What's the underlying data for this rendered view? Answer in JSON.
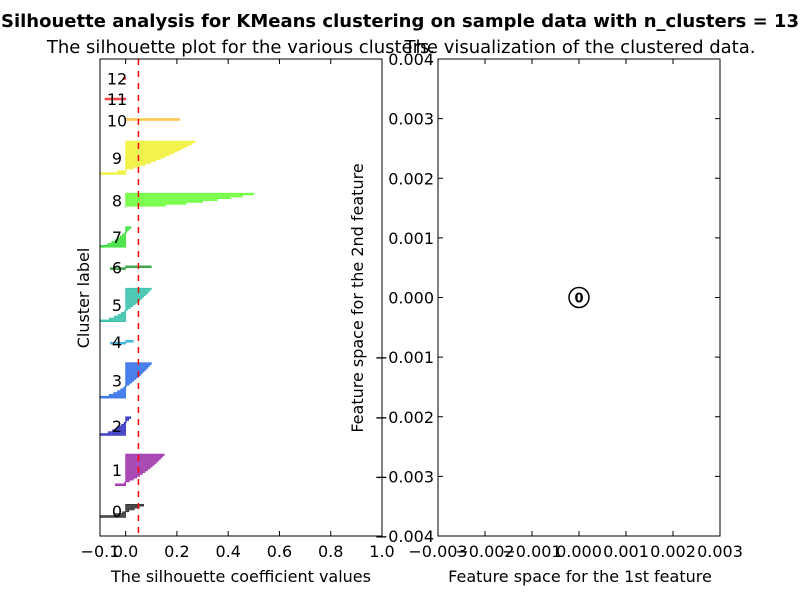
{
  "suptitle": "Silhouette analysis for KMeans clustering on sample data with n_clusters = 13",
  "chart_data": [
    {
      "type": "area",
      "title": "The silhouette plot for the various clusters.",
      "xlabel": "The silhouette coefficient values",
      "ylabel": "Cluster label",
      "xlim": [
        -0.1,
        1.0
      ],
      "xticks": [
        "−0.1",
        "0.0",
        "0.2",
        "0.4",
        "0.6",
        "0.8",
        "1.0"
      ],
      "xtick_values": [
        -0.1,
        0.0,
        0.2,
        0.4,
        0.6,
        0.8,
        1.0
      ],
      "average_silhouette": 0.05,
      "average_line_color": "#ff0000",
      "clusters": [
        {
          "label": "0",
          "size": 7,
          "min": -0.1,
          "max": 0.07,
          "color": "#2b2b2b"
        },
        {
          "label": "1",
          "size": 17,
          "min": -0.04,
          "max": 0.15,
          "color": "#9b2aa8"
        },
        {
          "label": "2",
          "size": 10,
          "min": -0.1,
          "max": 0.02,
          "color": "#2c2cc0"
        },
        {
          "label": "3",
          "size": 19,
          "min": -0.1,
          "max": 0.1,
          "color": "#2a6ae8"
        },
        {
          "label": "4",
          "size": 2,
          "min": -0.06,
          "max": 0.03,
          "color": "#30b0d8"
        },
        {
          "label": "5",
          "size": 18,
          "min": -0.1,
          "max": 0.1,
          "color": "#30c0a8"
        },
        {
          "label": "6",
          "size": 2,
          "min": -0.06,
          "max": 0.1,
          "color": "#30a040"
        },
        {
          "label": "7",
          "size": 11,
          "min": -0.1,
          "max": 0.02,
          "color": "#30e030"
        },
        {
          "label": "8",
          "size": 8,
          "min": 0.0,
          "max": 0.5,
          "color": "#66ff33"
        },
        {
          "label": "9",
          "size": 18,
          "min": -0.1,
          "max": 0.27,
          "color": "#f0f030"
        },
        {
          "label": "10",
          "size": 2,
          "min": 0.0,
          "max": 0.21,
          "color": "#ffc030"
        },
        {
          "label": "11",
          "size": 1,
          "min": -0.08,
          "max": 0.09,
          "color": "#ff3030"
        },
        {
          "label": "12",
          "size": 1,
          "min": -0.01,
          "max": 0.1,
          "color": "#ff2020"
        }
      ]
    },
    {
      "type": "scatter",
      "title": "The visualization of the clustered data.",
      "xlabel": "Feature space for the 1st feature",
      "ylabel": "Feature space for the 2nd feature",
      "xlim": [
        -0.003,
        0.003
      ],
      "ylim": [
        -0.004,
        0.004
      ],
      "xticks": [
        "−0.003",
        "−0.002",
        "−0.001",
        "0.000",
        "0.001",
        "0.002",
        "0.003"
      ],
      "xtick_values": [
        -0.003,
        -0.002,
        -0.001,
        0.0,
        0.001,
        0.002,
        0.003
      ],
      "yticks": [
        "−0.004",
        "−0.003",
        "−0.002",
        "−0.001",
        "0.000",
        "0.001",
        "0.002",
        "0.003",
        "0.004"
      ],
      "ytick_values": [
        -0.004,
        -0.003,
        -0.002,
        -0.001,
        0.0,
        0.001,
        0.002,
        0.003,
        0.004
      ],
      "points": [
        {
          "x": 0.0,
          "y": 0.0,
          "marker_label": "0"
        }
      ]
    }
  ]
}
